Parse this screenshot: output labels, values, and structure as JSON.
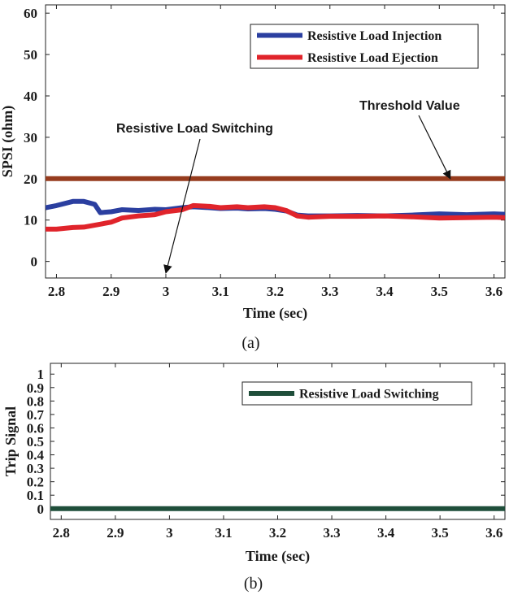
{
  "chart_data": [
    {
      "type": "line",
      "panel_caption": "(a)",
      "xlabel": "Time (sec)",
      "ylabel": "SPSI (ohm)",
      "xlim": [
        2.78,
        3.62
      ],
      "ylim": [
        -4,
        62
      ],
      "xticks": [
        2.8,
        2.9,
        3,
        3.1,
        3.2,
        3.3,
        3.4,
        3.5,
        3.6
      ],
      "xtick_labels": [
        "2.8",
        "2.9",
        "3",
        "3.1",
        "3.2",
        "3.3",
        "3.4",
        "3.5",
        "3.6"
      ],
      "yticks": [
        0,
        10,
        20,
        30,
        40,
        50,
        60
      ],
      "ytick_labels": [
        "0",
        "10",
        "20",
        "30",
        "40",
        "50",
        "60"
      ],
      "legend_position": "top-right",
      "series": [
        {
          "name": "Resistive Load Injection",
          "color": "#2b3fa0",
          "x": [
            2.78,
            2.8,
            2.83,
            2.85,
            2.87,
            2.88,
            2.9,
            2.92,
            2.95,
            2.98,
            3.0,
            3.03,
            3.05,
            3.08,
            3.1,
            3.13,
            3.15,
            3.18,
            3.2,
            3.22,
            3.24,
            3.26,
            3.3,
            3.35,
            3.4,
            3.45,
            3.5,
            3.55,
            3.6,
            3.62
          ],
          "y": [
            13.0,
            13.5,
            14.5,
            14.5,
            13.8,
            11.8,
            12.0,
            12.5,
            12.3,
            12.6,
            12.5,
            13.0,
            13.2,
            13.0,
            12.8,
            12.9,
            12.7,
            12.8,
            12.6,
            12.2,
            11.2,
            11.0,
            11.0,
            11.1,
            11.0,
            11.2,
            11.5,
            11.3,
            11.5,
            11.4
          ]
        },
        {
          "name": "Resistive Load Ejection",
          "color": "#e0242b",
          "x": [
            2.78,
            2.8,
            2.83,
            2.85,
            2.88,
            2.9,
            2.92,
            2.95,
            2.98,
            3.0,
            3.03,
            3.05,
            3.08,
            3.1,
            3.13,
            3.15,
            3.18,
            3.2,
            3.22,
            3.24,
            3.26,
            3.3,
            3.35,
            3.4,
            3.45,
            3.5,
            3.55,
            3.6,
            3.62
          ],
          "y": [
            7.8,
            7.8,
            8.2,
            8.3,
            9.0,
            9.5,
            10.5,
            11.0,
            11.3,
            12.0,
            12.5,
            13.5,
            13.3,
            13.0,
            13.2,
            13.0,
            13.2,
            13.0,
            12.3,
            11.0,
            10.7,
            10.9,
            10.9,
            11.0,
            10.8,
            10.5,
            10.6,
            10.7,
            10.6
          ]
        },
        {
          "name": "Threshold",
          "color": "#963c1e",
          "x": [
            2.78,
            3.62
          ],
          "y": [
            20,
            20
          ]
        }
      ],
      "annotations": [
        {
          "text": "Threshold Value",
          "arrow_to": [
            3.52,
            20
          ]
        },
        {
          "text": "Resistive Load Switching",
          "arrow_to": [
            3.0,
            -2.8
          ]
        }
      ]
    },
    {
      "type": "line",
      "panel_caption": "(b)",
      "xlabel": "Time (sec)",
      "ylabel": "Trip Signal",
      "xlim": [
        2.78,
        3.62
      ],
      "ylim": [
        -0.08,
        1.08
      ],
      "xticks": [
        2.8,
        2.9,
        3,
        3.1,
        3.2,
        3.3,
        3.4,
        3.5,
        3.6
      ],
      "xtick_labels": [
        "2.8",
        "2.9",
        "3",
        "3.1",
        "3.2",
        "3.3",
        "3.4",
        "3.5",
        "3.6"
      ],
      "yticks": [
        0,
        0.1,
        0.2,
        0.3,
        0.4,
        0.5,
        0.6,
        0.7,
        0.8,
        0.9,
        1
      ],
      "ytick_labels": [
        "0",
        "0.1",
        "0.2",
        "0.3",
        "0.4",
        "0.5",
        "0.6",
        "0.7",
        "0.8",
        "0.9",
        "1"
      ],
      "legend_position": "top-right",
      "series": [
        {
          "name": "Resistive Load Switching",
          "color": "#1f4e3a",
          "x": [
            2.78,
            3.62
          ],
          "y": [
            0,
            0
          ]
        }
      ]
    }
  ]
}
